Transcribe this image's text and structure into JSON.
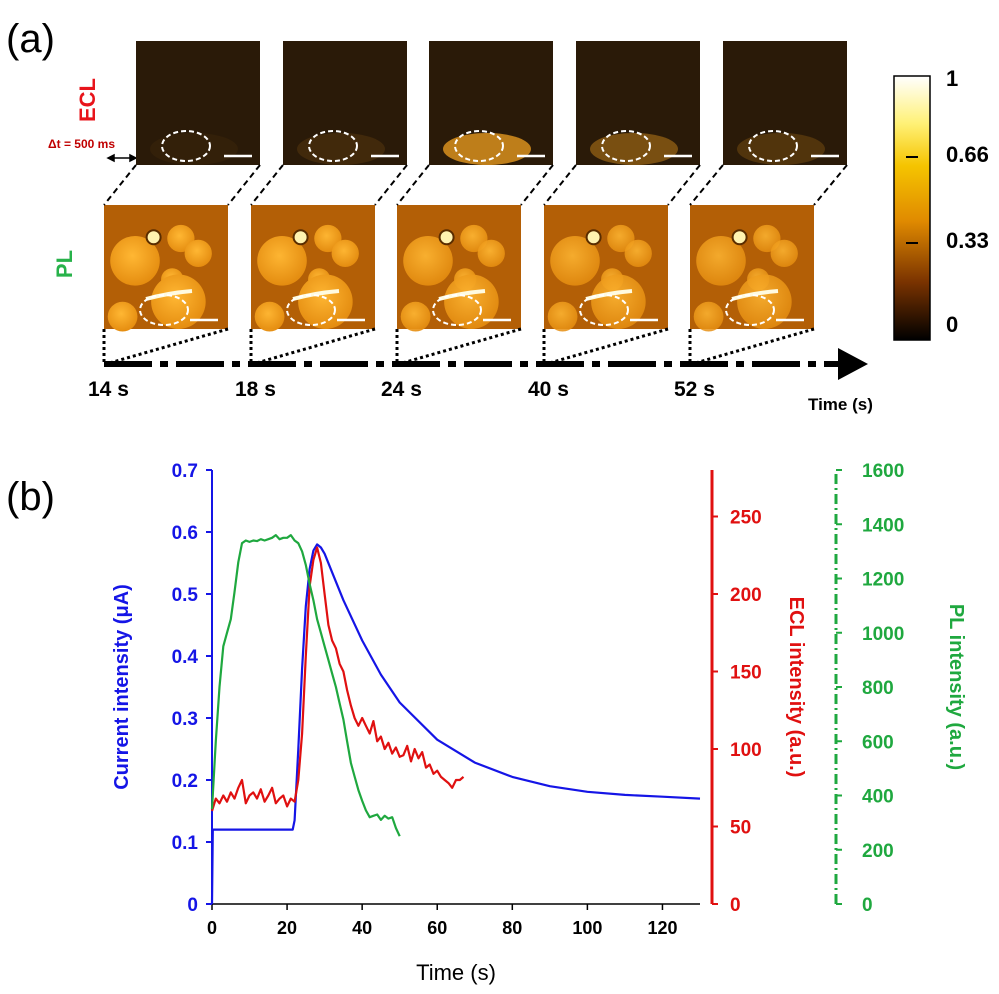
{
  "panel_a": {
    "label": "(a)",
    "ecl_row_label": "ECL",
    "pl_row_label": "PL",
    "delta_t_label": "Δt = 500 ms",
    "time_points": [
      "14 s",
      "18 s",
      "24 s",
      "40 s",
      "52 s"
    ],
    "time_axis_label": "Time (s)",
    "ecl_glow": [
      0.05,
      0.12,
      0.75,
      0.4,
      0.2
    ],
    "pl_brightness": [
      1.0,
      0.95,
      0.8,
      0.7,
      0.65
    ],
    "colorbar": {
      "ticks": [
        "1",
        "0.66",
        "0.33",
        "0"
      ],
      "colors": [
        "#ffffff",
        "#fff176",
        "#f5c400",
        "#e08a00",
        "#8a3d00",
        "#000000"
      ]
    },
    "colors": {
      "ecl_label": "#e8141b",
      "pl_label": "#27b24a",
      "delta_t": "#c00000"
    }
  },
  "panel_b": {
    "label": "(b)",
    "chart_data": {
      "type": "line",
      "xlabel": "Time (s)",
      "xlim": [
        0,
        130
      ],
      "xticks": [
        0,
        20,
        40,
        60,
        80,
        100,
        120
      ],
      "axes": [
        {
          "name": "current",
          "label": "Current intensity (μA)",
          "color": "#1515e6",
          "lim": [
            0,
            0.7
          ],
          "ticks": [
            "0",
            "0.1",
            "0.2",
            "0.3",
            "0.4",
            "0.5",
            "0.6",
            "0.7"
          ]
        },
        {
          "name": "ecl",
          "label": "ECL intensity (a.u.)",
          "color": "#e01010",
          "lim": [
            0,
            280
          ],
          "ticks": [
            "0",
            "50",
            "100",
            "150",
            "200",
            "250"
          ]
        },
        {
          "name": "pl",
          "label": "PL intensity (a.u.)",
          "color": "#1fa83f",
          "lim": [
            0,
            1600
          ],
          "ticks": [
            "0",
            "200",
            "400",
            "600",
            "800",
            "1000",
            "1200",
            "1400",
            "1600"
          ]
        }
      ],
      "series": [
        {
          "axis": "current",
          "x": [
            0,
            0.2,
            1,
            21.5,
            22,
            23,
            24,
            25,
            26,
            27,
            28,
            29,
            30,
            32,
            35,
            40,
            45,
            50,
            60,
            70,
            80,
            90,
            100,
            110,
            120,
            130
          ],
          "y": [
            0,
            0.12,
            0.12,
            0.12,
            0.135,
            0.25,
            0.38,
            0.48,
            0.54,
            0.57,
            0.58,
            0.575,
            0.565,
            0.535,
            0.49,
            0.425,
            0.37,
            0.325,
            0.265,
            0.228,
            0.205,
            0.19,
            0.181,
            0.176,
            0.173,
            0.17
          ]
        },
        {
          "axis": "ecl",
          "x": [
            0,
            1,
            2,
            3,
            4,
            5,
            6,
            7,
            8,
            9,
            10,
            11,
            12,
            13,
            14,
            15,
            16,
            17,
            18,
            19,
            20,
            21,
            22,
            23,
            24,
            25,
            26,
            27,
            28,
            29,
            30,
            31,
            32,
            33,
            34,
            35,
            36,
            37,
            38,
            39,
            40,
            41,
            42,
            43,
            44,
            45,
            46,
            47,
            48,
            49,
            50,
            51,
            52,
            53,
            54,
            55,
            56,
            57,
            58,
            59,
            60,
            61,
            62,
            63,
            64,
            65,
            66,
            67
          ],
          "y": [
            60,
            68,
            65,
            70,
            66,
            72,
            68,
            75,
            80,
            65,
            70,
            72,
            68,
            74,
            66,
            70,
            75,
            65,
            68,
            70,
            63,
            68,
            66,
            80,
            110,
            160,
            205,
            222,
            230,
            220,
            200,
            180,
            170,
            165,
            155,
            150,
            138,
            128,
            120,
            115,
            120,
            115,
            110,
            118,
            105,
            108,
            100,
            104,
            97,
            101,
            95,
            96,
            102,
            92,
            100,
            94,
            98,
            88,
            90,
            84,
            86,
            82,
            80,
            78,
            75,
            80,
            80,
            82
          ]
        },
        {
          "axis": "pl",
          "x": [
            0,
            1,
            2,
            3,
            4,
            5,
            6,
            7,
            8,
            9,
            10,
            11,
            12,
            13,
            14,
            15,
            16,
            17,
            18,
            19,
            20,
            21,
            22,
            23,
            24,
            25,
            26,
            27,
            28,
            29,
            30,
            31,
            32,
            33,
            34,
            35,
            36,
            37,
            38,
            39,
            40,
            41,
            42,
            43,
            44,
            45,
            46,
            47,
            48,
            49,
            50
          ],
          "y": [
            350,
            600,
            800,
            950,
            1000,
            1050,
            1150,
            1260,
            1330,
            1340,
            1335,
            1340,
            1338,
            1345,
            1340,
            1345,
            1350,
            1360,
            1345,
            1350,
            1350,
            1360,
            1340,
            1330,
            1300,
            1250,
            1180,
            1120,
            1050,
            1000,
            950,
            900,
            850,
            800,
            740,
            680,
            600,
            520,
            470,
            420,
            380,
            345,
            320,
            325,
            330,
            310,
            325,
            315,
            320,
            280,
            250
          ]
        }
      ]
    }
  }
}
